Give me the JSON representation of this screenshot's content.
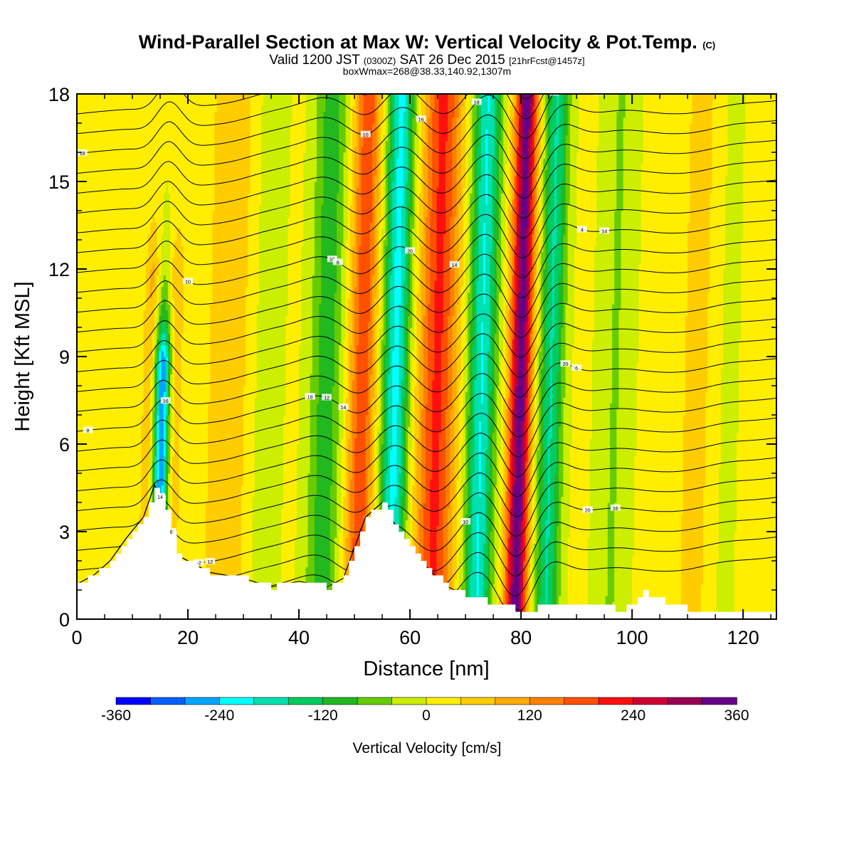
{
  "header": {
    "title": "Wind-Parallel Section at Max W: Vertical Velocity & Pot.Temp.",
    "copyright": "(C)",
    "valid_a": "Valid 1200 JST",
    "valid_zone": "(0300Z)",
    "valid_b": "SAT 26 Dec 2015",
    "forecast": "[21hrFcst@1457z]",
    "boxmax": "boxWmax=268@38.33,140.92,1307m"
  },
  "colors": {
    "plot_background": "#ccee00",
    "terrain": "#ffffff",
    "contour_line": "#000000",
    "scale": [
      "#0000ff",
      "#0060ff",
      "#00a4ff",
      "#00ffff",
      "#00e0b0",
      "#00cc60",
      "#22b820",
      "#66cc00",
      "#ccee00",
      "#ffee00",
      "#ffcc00",
      "#ffaa00",
      "#ff8000",
      "#ff5000",
      "#ff1010",
      "#cc0033",
      "#990055",
      "#660088"
    ]
  },
  "chart_data": {
    "type": "heatmap",
    "title": "Wind-Parallel Section at Max W: Vertical Velocity & Pot.Temp.",
    "xlabel": "Distance [nm]",
    "ylabel": "Height [Kft MSL]",
    "xlim": [
      0,
      126
    ],
    "ylim": [
      0,
      18
    ],
    "x_ticks": [
      "0",
      "20",
      "40",
      "60",
      "80",
      "100",
      "120"
    ],
    "y_ticks": [
      "0",
      "3",
      "6",
      "9",
      "12",
      "15",
      "18"
    ],
    "colorbar": {
      "label": "Vertical Velocity [cm/s]",
      "levels": [
        -360,
        -320,
        -280,
        -240,
        -200,
        -160,
        -120,
        -80,
        -40,
        0,
        40,
        80,
        120,
        160,
        200,
        240,
        280,
        320,
        360
      ],
      "tick_labels": [
        "-360",
        "-240",
        "-120",
        "0",
        "120",
        "240",
        "360"
      ]
    },
    "vertical_velocity_bands": [
      {
        "x": 15.5,
        "w": 1.6,
        "amp": -300,
        "z_top": 9
      },
      {
        "x": 13.5,
        "w": 1.5,
        "amp": 90,
        "z_top": 12
      },
      {
        "x": 17.5,
        "w": 1.5,
        "amp": 70,
        "z_top": 12
      },
      {
        "x": 28,
        "w": 6,
        "amp": 50,
        "z_top": 18
      },
      {
        "x": 34,
        "w": 3,
        "amp": -50,
        "z_top": 18
      },
      {
        "x": 45,
        "w": 3,
        "amp": -110,
        "z_top": 18
      },
      {
        "x": 51.5,
        "w": 2.5,
        "amp": 180,
        "z_top": 18
      },
      {
        "x": 57.5,
        "w": 2.5,
        "amp": -220,
        "z_top": 18
      },
      {
        "x": 65,
        "w": 3.5,
        "amp": 200,
        "z_top": 18
      },
      {
        "x": 73,
        "w": 2.5,
        "amp": -210,
        "z_top": 18
      },
      {
        "x": 80,
        "w": 2,
        "amp": 330,
        "z_top": 18
      },
      {
        "x": 85.5,
        "w": 2.2,
        "amp": -170,
        "z_top": 18
      },
      {
        "x": 97,
        "w": 3,
        "amp": -50,
        "z_top": 18
      },
      {
        "x": 112,
        "w": 5,
        "amp": 40,
        "z_top": 18
      },
      {
        "x": 117,
        "w": 2.5,
        "amp": -30,
        "z_top": 18
      }
    ],
    "terrain_profile": {
      "x": [
        0,
        3,
        6,
        9,
        12,
        14,
        16,
        18,
        20,
        24,
        30,
        35,
        40,
        45,
        48,
        52,
        55,
        58,
        62,
        66,
        70,
        74,
        78,
        80,
        84,
        88,
        92,
        98,
        102,
        106,
        110,
        126
      ],
      "z": [
        1.2,
        1.5,
        2.0,
        2.8,
        3.5,
        4.6,
        3.8,
        2.2,
        2.0,
        1.6,
        1.4,
        1.1,
        1.3,
        1.1,
        1.4,
        3.5,
        4.0,
        3.0,
        2.0,
        1.2,
        0.8,
        0.6,
        0.4,
        0.3,
        0.4,
        0.6,
        0.6,
        0.3,
        0.9,
        0.6,
        0.3,
        0.3
      ]
    },
    "potential_temperature_labels": [
      "-2",
      "20",
      "20",
      "18",
      "18",
      "16",
      "16",
      "16",
      "14",
      "14",
      "14",
      "14",
      "12",
      "12",
      "10",
      "10",
      "10",
      "8",
      "8",
      "6",
      "6",
      "6",
      "4",
      "18",
      "20",
      "18",
      "14",
      "14",
      "16",
      "20"
    ]
  }
}
